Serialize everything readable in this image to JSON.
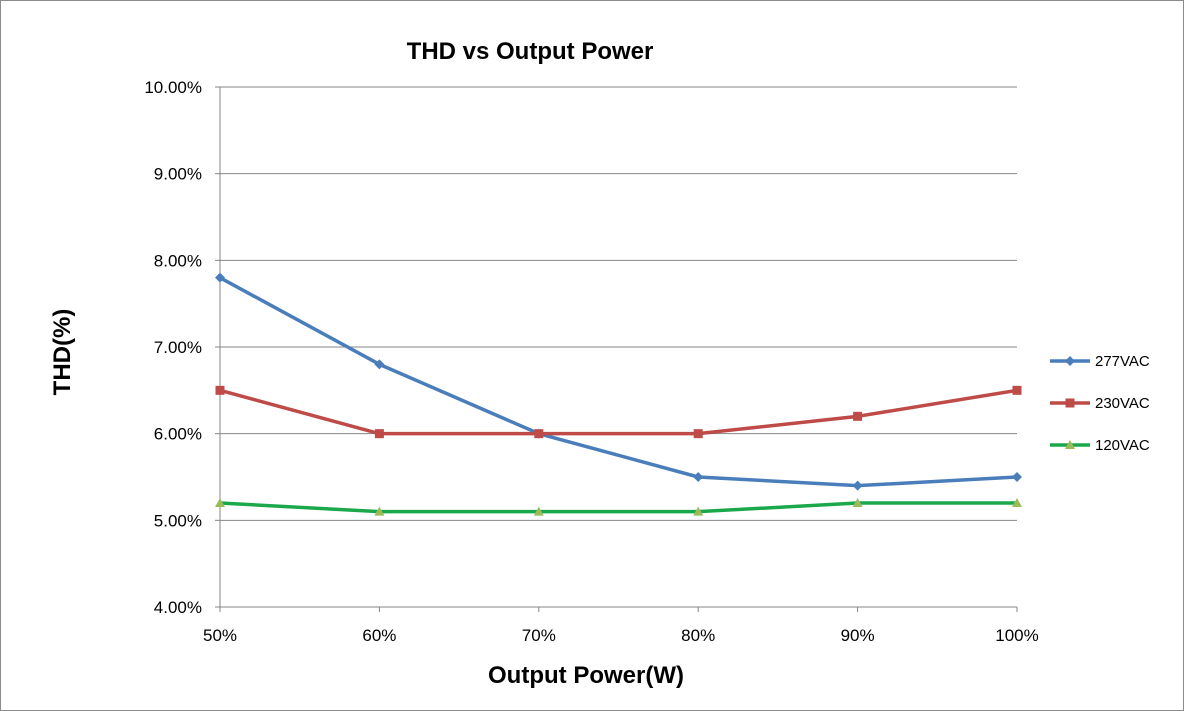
{
  "chart_data": {
    "type": "line",
    "title": "THD vs Output Power",
    "xlabel": "Output Power(W)",
    "ylabel": "THD(%)",
    "categories": [
      "50%",
      "60%",
      "70%",
      "80%",
      "90%",
      "100%"
    ],
    "ylim": [
      4.0,
      10.0
    ],
    "yticks": [
      4.0,
      5.0,
      6.0,
      7.0,
      8.0,
      9.0,
      10.0
    ],
    "ytick_labels": [
      "4.00%",
      "5.00%",
      "6.00%",
      "7.00%",
      "8.00%",
      "9.00%",
      "10.00%"
    ],
    "grid": true,
    "legend_position": "right",
    "series": [
      {
        "name": "277VAC",
        "values": [
          7.8,
          6.8,
          6.0,
          5.5,
          5.4,
          5.5
        ],
        "color": "#4a7ebb",
        "marker": "diamond"
      },
      {
        "name": "230VAC",
        "values": [
          6.5,
          6.0,
          6.0,
          6.0,
          6.2,
          6.5
        ],
        "color": "#be4b48",
        "marker": "square"
      },
      {
        "name": "120VAC",
        "values": [
          5.2,
          5.1,
          5.1,
          5.1,
          5.2,
          5.2
        ],
        "color": "#1aa84a",
        "marker": "triangle",
        "marker_color": "#9bbb59"
      }
    ]
  }
}
